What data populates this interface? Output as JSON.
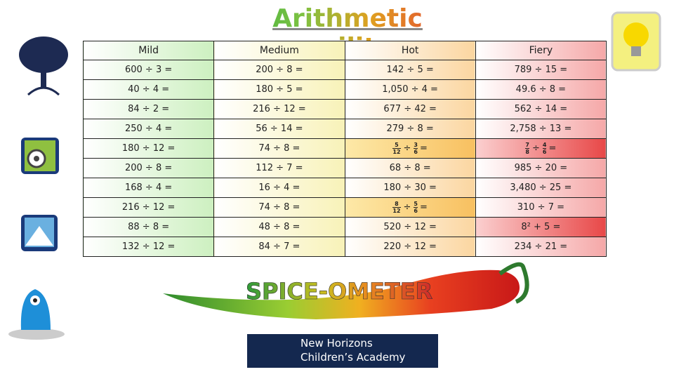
{
  "header": {
    "title": "Arithmetic agility"
  },
  "table": {
    "columns": [
      "Mild",
      "Medium",
      "Hot",
      "Fiery"
    ],
    "rows": [
      [
        "600 ÷ 3 =",
        "200 ÷ 8 =",
        "142 ÷ 5 =",
        "789 ÷ 15 ="
      ],
      [
        "40 ÷ 4 =",
        "180 ÷ 5 =",
        "1,050 ÷ 4 =",
        "49.6 ÷ 8 ="
      ],
      [
        "84 ÷ 2 =",
        "216 ÷ 12 =",
        "677 ÷ 42 =",
        "562 ÷ 14 ="
      ],
      [
        "250 ÷ 4 =",
        "56 ÷ 14 =",
        "279 ÷ 8 =",
        "2,758 ÷ 13 ="
      ],
      [
        "180 ÷ 12 =",
        "74 ÷ 8 =",
        {
          "left": [
            "5",
            "12"
          ],
          "op": "÷",
          "right": [
            "3",
            "6"
          ],
          "end": "="
        },
        {
          "left": [
            "7",
            "8"
          ],
          "op": "÷",
          "right": [
            "4",
            "6"
          ],
          "end": "="
        }
      ],
      [
        "200 ÷ 8 =",
        "112 ÷ 7 =",
        "68 ÷ 8 =",
        "985 ÷ 20 ="
      ],
      [
        "168 ÷ 4 =",
        "16 ÷ 4 =",
        "180 ÷ 30 =",
        "3,480 ÷ 25 ="
      ],
      [
        "216 ÷ 12 =",
        "74 ÷ 8 =",
        {
          "left": [
            "8",
            "12"
          ],
          "op": "÷",
          "right": [
            "5",
            "6"
          ],
          "end": "="
        },
        "310 ÷ 7 ="
      ],
      [
        "88 ÷ 8 =",
        "48 ÷ 8 =",
        "520 ÷ 12 =",
        "8² + 5 ="
      ],
      [
        "132 ÷ 12 =",
        "84 ÷ 7 =",
        "220 ÷ 12 =",
        "234 ÷ 21 ="
      ]
    ]
  },
  "footer": {
    "meter": "SPICE-OMETER",
    "logo": [
      "New Horizons",
      "Children’s Academy"
    ]
  }
}
